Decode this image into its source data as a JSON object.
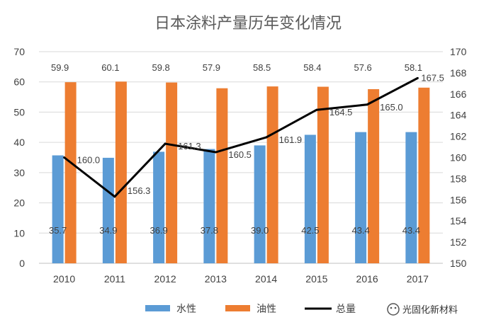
{
  "chart_data": {
    "type": "bar",
    "title": "日本涂料产量历年变化情况",
    "categories": [
      "2010",
      "2011",
      "2012",
      "2013",
      "2014",
      "2015",
      "2016",
      "2017"
    ],
    "series": [
      {
        "name": "水性",
        "type": "bar",
        "axis": "left",
        "color": "#5B9BD5",
        "values": [
          35.7,
          34.9,
          36.9,
          37.8,
          39.0,
          42.5,
          43.4,
          43.4
        ]
      },
      {
        "name": "油性",
        "type": "bar",
        "axis": "left",
        "color": "#ED7D31",
        "values": [
          59.9,
          60.1,
          59.8,
          57.9,
          58.5,
          58.4,
          57.6,
          58.1
        ]
      },
      {
        "name": "总量",
        "type": "line",
        "axis": "right",
        "color": "#000000",
        "values": [
          160.0,
          156.3,
          161.3,
          160.5,
          161.9,
          164.5,
          165.0,
          167.5
        ]
      }
    ],
    "labels": {
      "水性": [
        "35.7",
        "34.9",
        "36.9",
        "37.8",
        "39.0",
        "42.5",
        "43.4",
        "43.4"
      ],
      "油性": [
        "59.9",
        "60.1",
        "59.8",
        "57.9",
        "58.5",
        "58.4",
        "57.6",
        "58.1"
      ],
      "总量": [
        "160.0",
        "156.3",
        "161.3",
        "160.5",
        "161.9",
        "164.5",
        "165.0",
        "167.5"
      ]
    },
    "ylim_left": [
      0,
      70
    ],
    "ylim_right": [
      150,
      170
    ],
    "left_ticks": [
      "0",
      "10",
      "20",
      "30",
      "40",
      "50",
      "60",
      "70"
    ],
    "right_ticks": [
      "150",
      "152",
      "154",
      "156",
      "158",
      "160",
      "162",
      "164",
      "166",
      "168",
      "170"
    ],
    "grid": true,
    "legend_position": "bottom"
  },
  "watermark": {
    "icon": "wechat-icon",
    "text": "光固化新材料"
  }
}
